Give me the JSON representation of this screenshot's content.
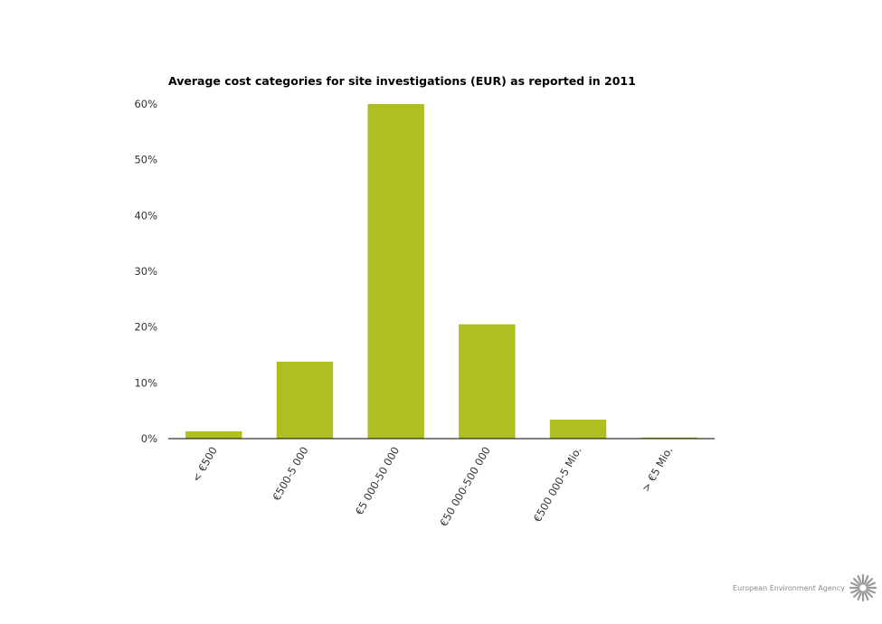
{
  "chart_data": {
    "type": "bar",
    "title": "Average cost categories for site investigations (EUR) as reported in 2011",
    "xlabel": "",
    "ylabel": "",
    "categories": [
      "< €500",
      "€500-5 000",
      "€5 000-50 000",
      "€50 000-500 000",
      "€500 000-5 Mio.",
      "> €5 Mio."
    ],
    "values": [
      1.3,
      13.8,
      60.0,
      20.5,
      3.4,
      0.2
    ],
    "ylim": [
      0,
      60
    ],
    "yticks": [
      0,
      10,
      20,
      30,
      40,
      50,
      60
    ],
    "ytick_labels": [
      "0%",
      "10%",
      "20%",
      "30%",
      "40%",
      "50%",
      "60%"
    ],
    "grid": false,
    "legend": "none",
    "bar_color": "#afbe21"
  },
  "credit": {
    "label": "European Environment Agency",
    "logo_icon": "eea-sun-logo-icon",
    "logo_color": "#9a9a9a"
  }
}
